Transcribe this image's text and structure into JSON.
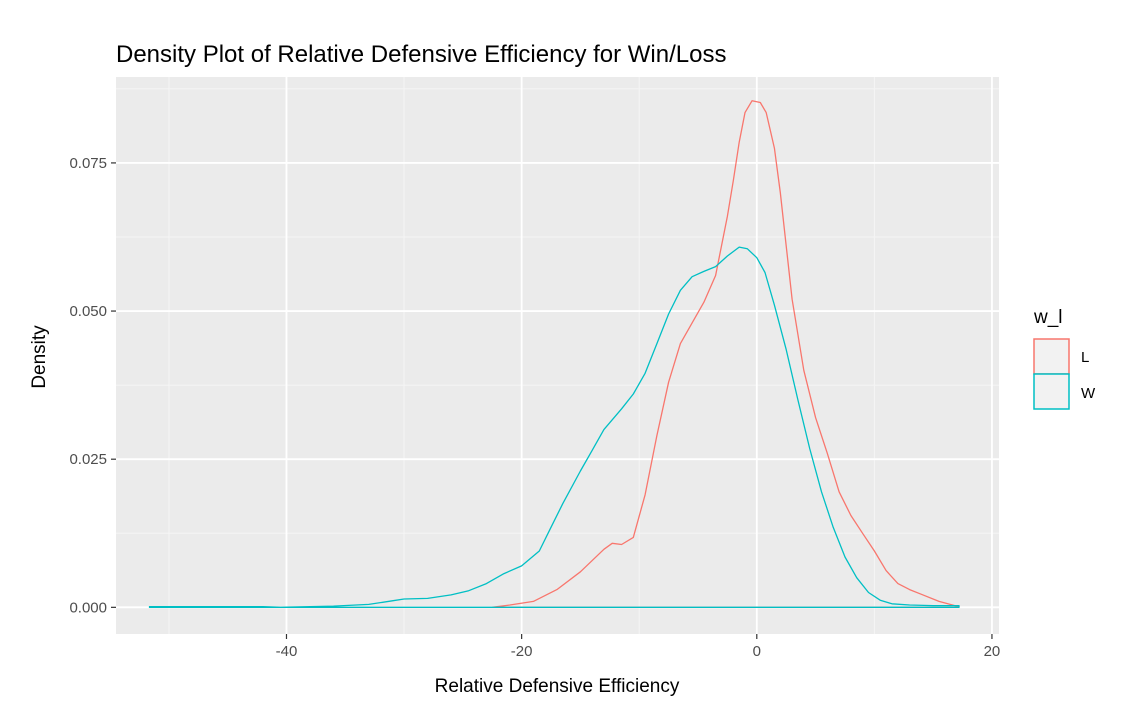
{
  "chart_data": {
    "type": "line",
    "title": "Density Plot of Relative Defensive Efficiency for Win/Loss",
    "xlabel": "Relative Defensive Efficiency",
    "ylabel": "Density",
    "xlim": [
      -54.5,
      20.6
    ],
    "ylim": [
      -0.0045,
      0.0895
    ],
    "x_ticks": [
      -40,
      -20,
      0,
      20
    ],
    "x_tick_labels": [
      "-40",
      "-20",
      "0",
      "20"
    ],
    "y_ticks": [
      0.0,
      0.025,
      0.05,
      0.075
    ],
    "y_tick_labels": [
      "0.000",
      "0.025",
      "0.050",
      "0.075"
    ],
    "grid": true,
    "legend_title": "w_l",
    "legend_position": "right",
    "series": [
      {
        "name": "L",
        "color": "#F8766D",
        "points": [
          [
            -22.5,
            0.0
          ],
          [
            -21,
            0.0004
          ],
          [
            -19,
            0.001
          ],
          [
            -17,
            0.003
          ],
          [
            -15,
            0.006
          ],
          [
            -13,
            0.0098
          ],
          [
            -12.3,
            0.0108
          ],
          [
            -11.5,
            0.0106
          ],
          [
            -10.5,
            0.0118
          ],
          [
            -9.5,
            0.019
          ],
          [
            -8.5,
            0.029
          ],
          [
            -7.5,
            0.038
          ],
          [
            -6.5,
            0.0445
          ],
          [
            -5.5,
            0.048
          ],
          [
            -4.5,
            0.0515
          ],
          [
            -3.5,
            0.056
          ],
          [
            -2.5,
            0.066
          ],
          [
            -2.0,
            0.072
          ],
          [
            -1.5,
            0.0785
          ],
          [
            -1.0,
            0.0835
          ],
          [
            -0.4,
            0.0855
          ],
          [
            0.3,
            0.0852
          ],
          [
            0.8,
            0.0835
          ],
          [
            1.5,
            0.0775
          ],
          [
            2.0,
            0.07
          ],
          [
            2.5,
            0.061
          ],
          [
            3.0,
            0.052
          ],
          [
            4.0,
            0.04
          ],
          [
            5.0,
            0.032
          ],
          [
            6.0,
            0.026
          ],
          [
            7.0,
            0.0195
          ],
          [
            8.0,
            0.0155
          ],
          [
            9.0,
            0.0125
          ],
          [
            10.0,
            0.0095
          ],
          [
            11.0,
            0.0062
          ],
          [
            12.0,
            0.004
          ],
          [
            13.0,
            0.003
          ],
          [
            14.0,
            0.0022
          ],
          [
            15.5,
            0.001
          ],
          [
            17.2,
            0.0001
          ],
          [
            17.2,
            0.0
          ],
          [
            -22.5,
            0.0
          ]
        ]
      },
      {
        "name": "W",
        "color": "#00BFC4",
        "points": [
          [
            -51.7,
            0.0001
          ],
          [
            -42,
            0.0001
          ],
          [
            -40.5,
            0.0
          ],
          [
            -36,
            0.0002
          ],
          [
            -33,
            0.0005
          ],
          [
            -31,
            0.0011
          ],
          [
            -30,
            0.0014
          ],
          [
            -28,
            0.0015
          ],
          [
            -26,
            0.0021
          ],
          [
            -24.5,
            0.0028
          ],
          [
            -23,
            0.004
          ],
          [
            -21.5,
            0.0057
          ],
          [
            -20,
            0.007
          ],
          [
            -18.5,
            0.0095
          ],
          [
            -17.5,
            0.0135
          ],
          [
            -16.5,
            0.0175
          ],
          [
            -15,
            0.023
          ],
          [
            -14,
            0.0265
          ],
          [
            -13,
            0.03
          ],
          [
            -11.5,
            0.0335
          ],
          [
            -10.5,
            0.036
          ],
          [
            -9.5,
            0.0395
          ],
          [
            -8.5,
            0.0445
          ],
          [
            -7.5,
            0.0495
          ],
          [
            -6.5,
            0.0535
          ],
          [
            -5.5,
            0.0558
          ],
          [
            -4.5,
            0.0567
          ],
          [
            -3.5,
            0.0575
          ],
          [
            -2.5,
            0.0593
          ],
          [
            -1.5,
            0.0608
          ],
          [
            -0.8,
            0.0605
          ],
          [
            0.0,
            0.059
          ],
          [
            0.7,
            0.0565
          ],
          [
            1.5,
            0.051
          ],
          [
            2.5,
            0.0435
          ],
          [
            3.5,
            0.035
          ],
          [
            4.5,
            0.0268
          ],
          [
            5.5,
            0.0195
          ],
          [
            6.5,
            0.0135
          ],
          [
            7.5,
            0.0085
          ],
          [
            8.5,
            0.005
          ],
          [
            9.5,
            0.0025
          ],
          [
            10.5,
            0.0012
          ],
          [
            11.5,
            0.0006
          ],
          [
            13.0,
            0.0004
          ],
          [
            15.0,
            0.0003
          ],
          [
            17.2,
            0.0003
          ],
          [
            17.2,
            0.0
          ],
          [
            -51.7,
            0.0
          ]
        ]
      }
    ]
  }
}
